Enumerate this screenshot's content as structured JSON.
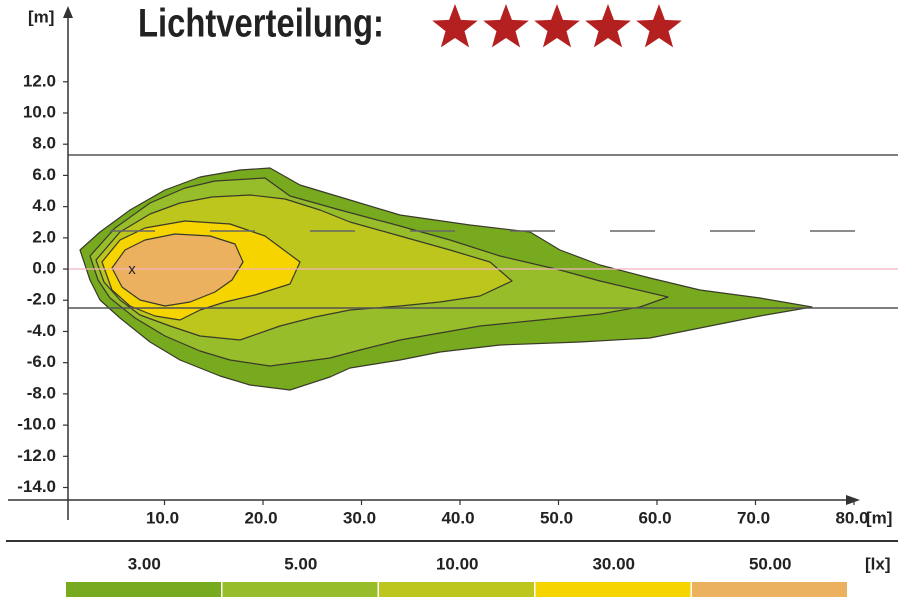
{
  "chart_data": {
    "type": "isolux",
    "title": "Lichtverteilung:",
    "rating": 5,
    "star_color": "#b3201f",
    "y_unit": "[m]",
    "x_unit": "[m]",
    "level_unit": "[lx]",
    "marker": "x",
    "xlim": [
      0,
      81
    ],
    "xticks": [
      {
        "value": 10,
        "label": "10.0"
      },
      {
        "value": 20,
        "label": "20.0"
      },
      {
        "value": 30,
        "label": "30.0"
      },
      {
        "value": 40,
        "label": "40.0"
      },
      {
        "value": 50,
        "label": "50.0"
      },
      {
        "value": 60,
        "label": "60.0"
      },
      {
        "value": 70,
        "label": "70.0"
      },
      {
        "value": 80,
        "label": "80.0"
      }
    ],
    "ylim": [
      -14.8,
      16.6
    ],
    "yticks": [
      {
        "value": 12,
        "label": "12.0"
      },
      {
        "value": 10,
        "label": "10.0"
      },
      {
        "value": 8,
        "label": "8.0"
      },
      {
        "value": 6,
        "label": "6.0"
      },
      {
        "value": 4,
        "label": "4.0"
      },
      {
        "value": 2,
        "label": "2.0"
      },
      {
        "value": 0,
        "label": "0.0"
      },
      {
        "value": -2,
        "label": "-2.0"
      },
      {
        "value": -4,
        "label": "-4.0"
      },
      {
        "value": -6,
        "label": "-6.0"
      },
      {
        "value": -8,
        "label": "-8.0"
      },
      {
        "value": -10,
        "label": "-10.0"
      },
      {
        "value": -12,
        "label": "-12.0"
      },
      {
        "value": -14,
        "label": "-14.0"
      }
    ],
    "levels": [
      {
        "value": 3,
        "label": "3.00",
        "color": "#77aa1e"
      },
      {
        "value": 5,
        "label": "5.00",
        "color": "#97bd2a"
      },
      {
        "value": 10,
        "label": "10.00",
        "color": "#bcc61c"
      },
      {
        "value": 30,
        "label": "30.00",
        "color": "#f5d400"
      },
      {
        "value": 50,
        "label": "50.00",
        "color": "#ecb15e"
      }
    ]
  }
}
